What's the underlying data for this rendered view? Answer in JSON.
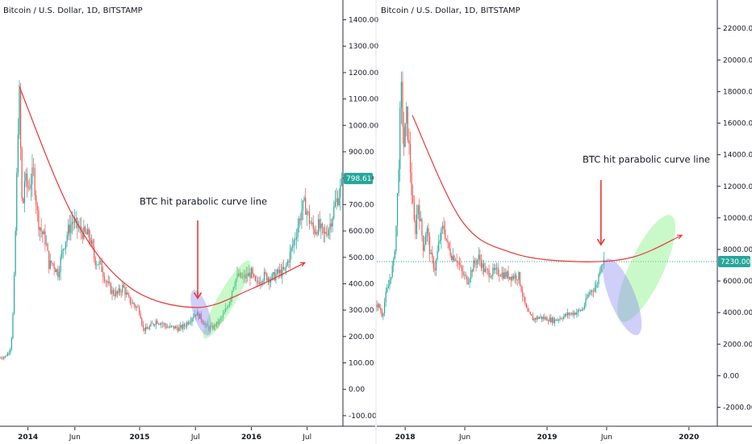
{
  "colors": {
    "candle_up": "#26a69a",
    "candle_down": "#ef5350",
    "curve": "#e53935",
    "arrow": "#e53935",
    "badge": "#26a69a",
    "blue_ellipse": "#8c8cf0",
    "green_ellipse": "#7ff07f",
    "dotted_line": "#26a69a",
    "axis_line": "#2a2e39",
    "grid": "#f0f3fa"
  },
  "chart_data": [
    {
      "type": "candlestick",
      "title": "Bitcoin / U.S. Dollar, 1D, BITSTAMP",
      "annotation": "BTC hit parabolic curve line",
      "last_price_badge": "798.61",
      "ylim": [
        -140,
        1475
      ],
      "y_ticks": [
        -100,
        0,
        100,
        200,
        300,
        400,
        500,
        600,
        700,
        800,
        900,
        1000,
        1100,
        1200,
        1300,
        1400
      ],
      "y_tick_labels": [
        "-100.00",
        "0.00",
        "100.00",
        "200.00",
        "300.00",
        "400.00",
        "500.00",
        "600.00",
        "700.00",
        "800.00",
        "900.00",
        "1000.00",
        "1100.00",
        "1200.00",
        "1300.00",
        "1400.00"
      ],
      "xlim": [
        2013.75,
        2016.82
      ],
      "x_ticks": [
        {
          "x": 2014.0,
          "label": "2014",
          "bold": true
        },
        {
          "x": 2014.42,
          "label": "Jun",
          "bold": false
        },
        {
          "x": 2015.0,
          "label": "2015",
          "bold": true
        },
        {
          "x": 2015.5,
          "label": "Jul",
          "bold": false
        },
        {
          "x": 2016.0,
          "label": "2016",
          "bold": true
        },
        {
          "x": 2016.5,
          "label": "Jul",
          "bold": false
        }
      ],
      "price_path": [
        [
          2013.75,
          120
        ],
        [
          2013.8,
          125
        ],
        [
          2013.84,
          150
        ],
        [
          2013.86,
          220
        ],
        [
          2013.88,
          450
        ],
        [
          2013.9,
          800
        ],
        [
          2013.92,
          1150
        ],
        [
          2013.935,
          900
        ],
        [
          2013.95,
          650
        ],
        [
          2013.97,
          800
        ],
        [
          2014.0,
          760
        ],
        [
          2014.05,
          820
        ],
        [
          2014.09,
          640
        ],
        [
          2014.12,
          600
        ],
        [
          2014.16,
          560
        ],
        [
          2014.19,
          470
        ],
        [
          2014.22,
          480
        ],
        [
          2014.27,
          440
        ],
        [
          2014.31,
          530
        ],
        [
          2014.36,
          600
        ],
        [
          2014.4,
          640
        ],
        [
          2014.45,
          610
        ],
        [
          2014.5,
          590
        ],
        [
          2014.55,
          580
        ],
        [
          2014.6,
          490
        ],
        [
          2014.65,
          470
        ],
        [
          2014.7,
          410
        ],
        [
          2014.75,
          370
        ],
        [
          2014.8,
          360
        ],
        [
          2014.85,
          390
        ],
        [
          2014.9,
          340
        ],
        [
          2014.95,
          320
        ],
        [
          2015.0,
          300
        ],
        [
          2015.03,
          230
        ],
        [
          2015.06,
          225
        ],
        [
          2015.1,
          240
        ],
        [
          2015.15,
          260
        ],
        [
          2015.2,
          250
        ],
        [
          2015.25,
          235
        ],
        [
          2015.3,
          235
        ],
        [
          2015.35,
          230
        ],
        [
          2015.4,
          240
        ],
        [
          2015.45,
          265
        ],
        [
          2015.5,
          290
        ],
        [
          2015.55,
          270
        ],
        [
          2015.6,
          235
        ],
        [
          2015.64,
          230
        ],
        [
          2015.7,
          250
        ],
        [
          2015.75,
          280
        ],
        [
          2015.8,
          330
        ],
        [
          2015.84,
          400
        ],
        [
          2015.88,
          430
        ],
        [
          2015.92,
          420
        ],
        [
          2015.96,
          430
        ],
        [
          2016.0,
          440
        ],
        [
          2016.04,
          395
        ],
        [
          2016.08,
          420
        ],
        [
          2016.12,
          430
        ],
        [
          2016.18,
          420
        ],
        [
          2016.24,
          440
        ],
        [
          2016.3,
          450
        ],
        [
          2016.36,
          530
        ],
        [
          2016.4,
          590
        ],
        [
          2016.45,
          680
        ],
        [
          2016.48,
          700
        ],
        [
          2016.52,
          640
        ],
        [
          2016.56,
          600
        ],
        [
          2016.6,
          620
        ],
        [
          2016.65,
          580
        ],
        [
          2016.7,
          620
        ],
        [
          2016.75,
          700
        ],
        [
          2016.8,
          760
        ],
        [
          2016.82,
          790
        ]
      ],
      "parabolic_curve": [
        [
          2013.92,
          1150
        ],
        [
          2014.4,
          660
        ],
        [
          2014.9,
          390
        ],
        [
          2015.5,
          310
        ],
        [
          2016.0,
          380
        ],
        [
          2016.48,
          480
        ]
      ],
      "blue_ellipse": {
        "cx": 2015.55,
        "cy": 290,
        "rx": 0.07,
        "ry": 90,
        "rotate": -18
      },
      "green_ellipse": {
        "cx": 2015.78,
        "cy": 340,
        "rx": 0.08,
        "ry": 170,
        "rotate": 30
      },
      "arrow": {
        "x": 2015.52,
        "y_from": 640,
        "y_to": 345
      },
      "label_pos": {
        "x": 2015.0,
        "y": 700
      }
    },
    {
      "type": "candlestick",
      "title": "Bitcoin / U.S. Dollar, 1D, BITSTAMP",
      "annotation": "BTC hit parabolic curve line",
      "last_price_badge": "7230.00",
      "reference_line": 7230,
      "ylim": [
        -3200,
        23800
      ],
      "y_ticks": [
        -2000,
        0,
        2000,
        4000,
        6000,
        8000,
        10000,
        12000,
        14000,
        16000,
        18000,
        20000,
        22000
      ],
      "y_tick_labels": [
        "-2000.00",
        "0.00",
        "2000.00",
        "4000.00",
        "6000.00",
        "8000.00",
        "10000.00",
        "12000.00",
        "14000.00",
        "16000.00",
        "18000.00",
        "20000.00",
        "22000.00"
      ],
      "xlim": [
        2017.8,
        2020.2
      ],
      "x_ticks": [
        {
          "x": 2018.0,
          "label": "2018",
          "bold": true
        },
        {
          "x": 2018.42,
          "label": "Jun",
          "bold": false
        },
        {
          "x": 2019.0,
          "label": "2019",
          "bold": true
        },
        {
          "x": 2019.42,
          "label": "Jun",
          "bold": false
        },
        {
          "x": 2020.0,
          "label": "2020",
          "bold": true
        }
      ],
      "price_path": [
        [
          2017.8,
          4500
        ],
        [
          2017.82,
          4300
        ],
        [
          2017.84,
          3800
        ],
        [
          2017.86,
          5000
        ],
        [
          2017.88,
          5600
        ],
        [
          2017.9,
          6500
        ],
        [
          2017.92,
          7200
        ],
        [
          2017.94,
          10000
        ],
        [
          2017.96,
          15000
        ],
        [
          2017.97,
          18500
        ],
        [
          2017.99,
          14500
        ],
        [
          2018.01,
          16500
        ],
        [
          2018.03,
          14000
        ],
        [
          2018.05,
          11000
        ],
        [
          2018.07,
          9000
        ],
        [
          2018.09,
          11000
        ],
        [
          2018.11,
          9500
        ],
        [
          2018.13,
          8000
        ],
        [
          2018.15,
          9500
        ],
        [
          2018.18,
          7500
        ],
        [
          2018.21,
          6800
        ],
        [
          2018.24,
          8500
        ],
        [
          2018.27,
          9500
        ],
        [
          2018.3,
          8200
        ],
        [
          2018.33,
          7600
        ],
        [
          2018.36,
          7500
        ],
        [
          2018.4,
          6500
        ],
        [
          2018.44,
          6000
        ],
        [
          2018.48,
          7000
        ],
        [
          2018.52,
          7500
        ],
        [
          2018.56,
          6600
        ],
        [
          2018.6,
          6500
        ],
        [
          2018.65,
          6600
        ],
        [
          2018.7,
          6400
        ],
        [
          2018.75,
          6300
        ],
        [
          2018.8,
          6300
        ],
        [
          2018.83,
          5000
        ],
        [
          2018.86,
          4000
        ],
        [
          2018.9,
          3600
        ],
        [
          2018.95,
          3700
        ],
        [
          2019.0,
          3600
        ],
        [
          2019.05,
          3500
        ],
        [
          2019.1,
          3700
        ],
        [
          2019.15,
          3900
        ],
        [
          2019.2,
          4000
        ],
        [
          2019.25,
          4200
        ],
        [
          2019.3,
          5300
        ],
        [
          2019.35,
          5700
        ],
        [
          2019.38,
          7200
        ],
        [
          2019.4,
          7230
        ]
      ],
      "parabolic_curve": [
        [
          2018.05,
          16500
        ],
        [
          2018.4,
          9800
        ],
        [
          2018.75,
          7800
        ],
        [
          2019.2,
          7230
        ],
        [
          2019.6,
          7500
        ],
        [
          2019.95,
          8900
        ]
      ],
      "curve_arrow": true,
      "blue_ellipse": {
        "cx": 2019.53,
        "cy": 5000,
        "rx": 0.09,
        "ry": 2600,
        "rotate": -22
      },
      "green_ellipse": {
        "cx": 2019.7,
        "cy": 6800,
        "rx": 0.12,
        "ry": 3700,
        "rotate": 25
      },
      "arrow": {
        "x": 2019.38,
        "y_from": 12400,
        "y_to": 8300
      },
      "label_pos": {
        "x": 2019.25,
        "y": 13500
      }
    }
  ]
}
